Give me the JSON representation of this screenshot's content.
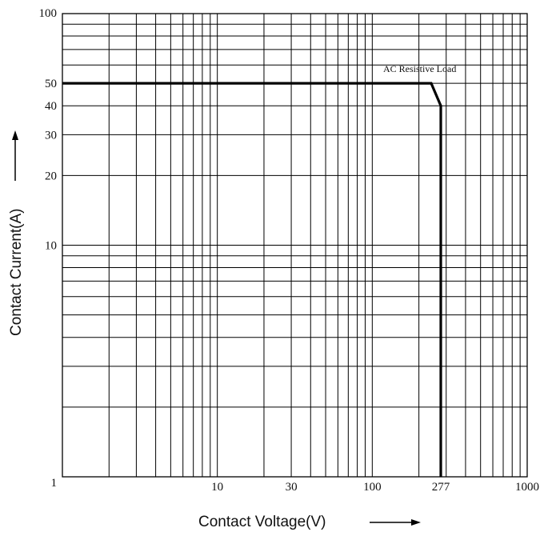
{
  "chart_data": {
    "type": "line",
    "xlabel": "Contact Voltage(V)",
    "ylabel": "Contact Current(A)",
    "x_scale": "log",
    "y_scale": "log",
    "xlim": [
      1,
      1000
    ],
    "ylim": [
      1,
      100
    ],
    "x_tick_labels": [
      {
        "value": 10,
        "label": "10"
      },
      {
        "value": 30,
        "label": "30"
      },
      {
        "value": 100,
        "label": "100"
      },
      {
        "value": 277,
        "label": "277"
      },
      {
        "value": 1000,
        "label": "1000"
      }
    ],
    "y_tick_labels": [
      {
        "value": 1,
        "label": "1"
      },
      {
        "value": 10,
        "label": "10"
      },
      {
        "value": 20,
        "label": "20"
      },
      {
        "value": 30,
        "label": "30"
      },
      {
        "value": 40,
        "label": "40"
      },
      {
        "value": 50,
        "label": "50"
      },
      {
        "value": 100,
        "label": "100"
      }
    ],
    "grid": true,
    "series": [
      {
        "name": "AC Resistive Load",
        "points": [
          {
            "x": 1,
            "y": 50
          },
          {
            "x": 240,
            "y": 50
          },
          {
            "x": 277,
            "y": 40
          },
          {
            "x": 277,
            "y": 1
          }
        ]
      }
    ],
    "annotations": [
      {
        "text": "AC Resistive Load"
      }
    ],
    "colors": {
      "line": "#000000",
      "grid": "#000000",
      "text": "#111111"
    }
  }
}
